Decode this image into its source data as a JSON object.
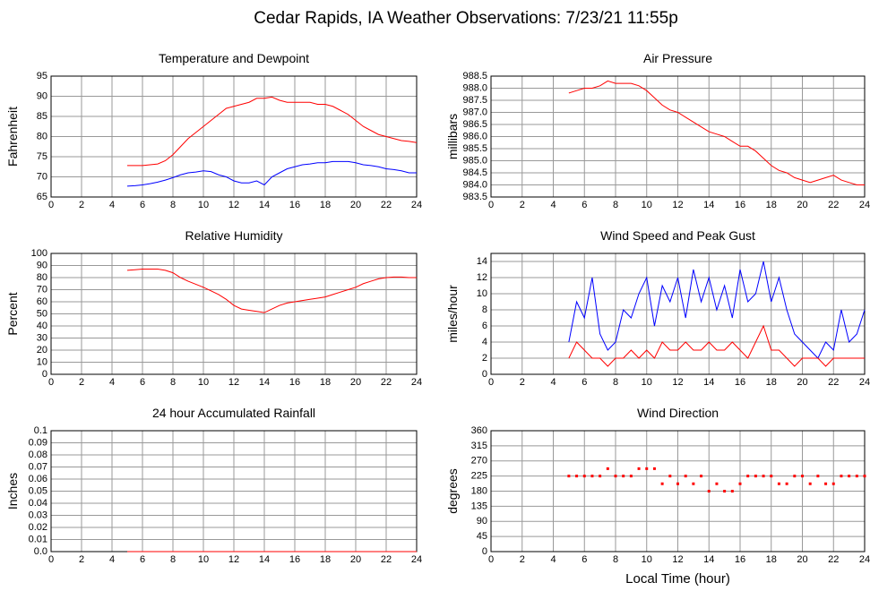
{
  "title": "Cedar Rapids, IA Weather Observations: 7/23/21 11:55p",
  "chart_data": [
    {
      "type": "line",
      "title": "Temperature and Dewpoint",
      "ylabel": "Fahrenheit",
      "grid": true,
      "xlim": [
        0,
        24
      ],
      "xticks": [
        0,
        2,
        4,
        6,
        8,
        10,
        12,
        14,
        16,
        18,
        20,
        22,
        24
      ],
      "ylim": [
        65,
        95
      ],
      "yticks": [
        65,
        70,
        75,
        80,
        85,
        90,
        95
      ],
      "x": [
        5,
        5.5,
        6,
        6.5,
        7,
        7.5,
        8,
        8.5,
        9,
        9.5,
        10,
        10.5,
        11,
        11.5,
        12,
        12.5,
        13,
        13.5,
        14,
        14.5,
        15,
        15.5,
        16,
        16.5,
        17,
        17.5,
        18,
        18.5,
        19,
        19.5,
        20,
        20.5,
        21,
        21.5,
        22,
        22.5,
        23,
        23.5,
        24
      ],
      "series": [
        {
          "color": "#ff0000",
          "values": [
            72.8,
            72.8,
            72.8,
            73,
            73.2,
            74,
            75.5,
            77.5,
            79.5,
            81,
            82.5,
            84,
            85.5,
            87,
            87.5,
            88,
            88.5,
            89.5,
            89.5,
            89.8,
            89,
            88.5,
            88.5,
            88.5,
            88.5,
            88,
            88,
            87.5,
            86.5,
            85.5,
            84,
            82.5,
            81.5,
            80.5,
            80,
            79.5,
            79,
            78.8,
            78.5
          ]
        },
        {
          "color": "#0000ff",
          "values": [
            67.7,
            67.8,
            68,
            68.3,
            68.7,
            69.2,
            69.8,
            70.5,
            71,
            71.2,
            71.5,
            71.3,
            70.5,
            70,
            69,
            68.5,
            68.5,
            69,
            68,
            70,
            71,
            72,
            72.5,
            73,
            73.2,
            73.5,
            73.5,
            73.8,
            73.8,
            73.8,
            73.5,
            73,
            72.8,
            72.5,
            72,
            71.8,
            71.5,
            71,
            71
          ]
        }
      ]
    },
    {
      "type": "line",
      "title": "Air Pressure",
      "ylabel": "millibars",
      "grid": true,
      "xlim": [
        0,
        24
      ],
      "xticks": [
        0,
        2,
        4,
        6,
        8,
        10,
        12,
        14,
        16,
        18,
        20,
        22,
        24
      ],
      "ylim": [
        983.5,
        988.5
      ],
      "yticks": [
        983.5,
        {
          "value": 984,
          "label": "984.0"
        },
        984.5,
        {
          "value": 985,
          "label": "985.0"
        },
        985.5,
        {
          "value": 986,
          "label": "986.0"
        },
        986.5,
        {
          "value": 987,
          "label": "987.0"
        },
        987.5,
        {
          "value": 988,
          "label": "988.0"
        },
        988.5
      ],
      "x": [
        5,
        5.5,
        6,
        6.5,
        7,
        7.5,
        8,
        8.5,
        9,
        9.5,
        10,
        10.5,
        11,
        11.5,
        12,
        12.5,
        13,
        13.5,
        14,
        14.5,
        15,
        15.5,
        16,
        16.5,
        17,
        17.5,
        18,
        18.5,
        19,
        19.5,
        20,
        20.5,
        21,
        21.5,
        22,
        22.5,
        23,
        23.5,
        24
      ],
      "series": [
        {
          "color": "#ff0000",
          "values": [
            987.8,
            987.9,
            988,
            988,
            988.1,
            988.3,
            988.2,
            988.2,
            988.2,
            988.1,
            987.9,
            987.6,
            987.3,
            987.1,
            987,
            986.8,
            986.6,
            986.4,
            986.2,
            986.1,
            986,
            985.8,
            985.6,
            985.6,
            985.4,
            985.1,
            984.8,
            984.6,
            984.5,
            984.3,
            984.2,
            984.1,
            984.2,
            984.3,
            984.4,
            984.2,
            984.1,
            984,
            984
          ]
        }
      ]
    },
    {
      "type": "line",
      "title": "Relative Humidity",
      "ylabel": "Percent",
      "grid": true,
      "xlim": [
        0,
        24
      ],
      "xticks": [
        0,
        2,
        4,
        6,
        8,
        10,
        12,
        14,
        16,
        18,
        20,
        22,
        24
      ],
      "ylim": [
        0,
        100
      ],
      "yticks": [
        0,
        10,
        20,
        30,
        40,
        50,
        60,
        70,
        80,
        90,
        100
      ],
      "x": [
        5,
        5.5,
        6,
        6.5,
        7,
        7.5,
        8,
        8.5,
        9,
        9.5,
        10,
        10.5,
        11,
        11.5,
        12,
        12.5,
        13,
        13.5,
        14,
        14.5,
        15,
        15.5,
        16,
        16.5,
        17,
        17.5,
        18,
        18.5,
        19,
        19.5,
        20,
        20.5,
        21,
        21.5,
        22,
        22.5,
        23,
        23.5,
        24
      ],
      "series": [
        {
          "color": "#ff0000",
          "values": [
            86,
            86.5,
            87,
            87,
            87,
            86,
            84,
            80,
            77,
            74.5,
            72,
            69,
            66,
            62,
            57,
            54,
            53,
            52,
            51,
            54,
            57,
            59,
            60,
            61,
            62,
            63,
            64,
            66,
            68,
            70,
            72,
            75,
            77,
            79,
            80,
            80.5,
            80.5,
            80,
            80
          ]
        }
      ]
    },
    {
      "type": "line",
      "title": "Wind Speed and Peak Gust",
      "ylabel": "miles/hour",
      "grid": true,
      "xlim": [
        0,
        24
      ],
      "xticks": [
        0,
        2,
        4,
        6,
        8,
        10,
        12,
        14,
        16,
        18,
        20,
        22,
        24
      ],
      "ylim": [
        0,
        15
      ],
      "yticks": [
        0,
        2,
        4,
        6,
        8,
        10,
        12,
        14
      ],
      "x": [
        5,
        5.5,
        6,
        6.5,
        7,
        7.5,
        8,
        8.5,
        9,
        9.5,
        10,
        10.5,
        11,
        11.5,
        12,
        12.5,
        13,
        13.5,
        14,
        14.5,
        15,
        15.5,
        16,
        16.5,
        17,
        17.5,
        18,
        18.5,
        19,
        19.5,
        20,
        20.5,
        21,
        21.5,
        22,
        22.5,
        23,
        23.5,
        24
      ],
      "series": [
        {
          "color": "#0000ff",
          "values": [
            4,
            9,
            7,
            12,
            5,
            3,
            4,
            8,
            7,
            10,
            12,
            6,
            11,
            9,
            12,
            7,
            13,
            9,
            12,
            8,
            11,
            7,
            13,
            9,
            10,
            14,
            9,
            12,
            8,
            5,
            4,
            3,
            2,
            4,
            3,
            8,
            4,
            5,
            8
          ]
        },
        {
          "color": "#ff0000",
          "values": [
            2,
            4,
            3,
            2,
            2,
            1,
            2,
            2,
            3,
            2,
            3,
            2,
            4,
            3,
            3,
            4,
            3,
            3,
            4,
            3,
            3,
            4,
            3,
            2,
            4,
            6,
            3,
            3,
            2,
            1,
            2,
            2,
            2,
            1,
            2,
            2,
            2,
            2,
            2
          ]
        }
      ]
    },
    {
      "type": "line",
      "title": "24 hour Accumulated Rainfall",
      "ylabel": "Inches",
      "grid": true,
      "xlim": [
        0,
        24
      ],
      "xticks": [
        0,
        2,
        4,
        6,
        8,
        10,
        12,
        14,
        16,
        18,
        20,
        22,
        24
      ],
      "ylim": [
        0,
        0.1
      ],
      "yticks": [
        {
          "value": 0,
          "label": "0.0"
        },
        0.01,
        0.02,
        0.03,
        0.04,
        0.05,
        0.06,
        0.07,
        0.08,
        0.09,
        0.1
      ],
      "x": [
        5,
        6,
        7,
        8,
        9,
        10,
        11,
        12,
        13,
        14,
        15,
        16,
        17,
        18,
        19,
        20,
        21,
        22,
        23,
        24
      ],
      "series": [
        {
          "color": "#ff0000",
          "values": [
            0,
            0,
            0,
            0,
            0,
            0,
            0,
            0,
            0,
            0,
            0,
            0,
            0,
            0,
            0,
            0,
            0,
            0,
            0,
            0
          ]
        }
      ]
    },
    {
      "type": "scatter",
      "title": "Wind Direction",
      "ylabel": "degrees",
      "xlabel": "Local Time (hour)",
      "grid": true,
      "xlim": [
        0,
        24
      ],
      "xticks": [
        0,
        2,
        4,
        6,
        8,
        10,
        12,
        14,
        16,
        18,
        20,
        22,
        24
      ],
      "ylim": [
        0,
        360
      ],
      "yticks": [
        0,
        45,
        90,
        135,
        180,
        225,
        270,
        315,
        360
      ],
      "x": [
        5,
        5.5,
        6,
        6.5,
        7,
        7.5,
        8,
        8.5,
        9,
        9.5,
        10,
        10.5,
        11,
        11.5,
        12,
        12.5,
        13,
        13.5,
        14,
        14.5,
        15,
        15.5,
        16,
        16.5,
        17,
        17.5,
        18,
        18.5,
        19,
        19.5,
        20,
        20.5,
        21,
        21.5,
        22,
        22.5,
        23,
        23.5,
        24
      ],
      "series": [
        {
          "color": "#ff0000",
          "values": [
            225,
            225,
            225,
            225,
            225,
            247,
            225,
            225,
            225,
            247,
            247,
            247,
            202,
            225,
            202,
            225,
            202,
            225,
            180,
            202,
            180,
            180,
            202,
            225,
            225,
            225,
            225,
            202,
            202,
            225,
            225,
            202,
            225,
            202,
            202,
            225,
            225,
            225,
            225
          ]
        }
      ]
    }
  ]
}
